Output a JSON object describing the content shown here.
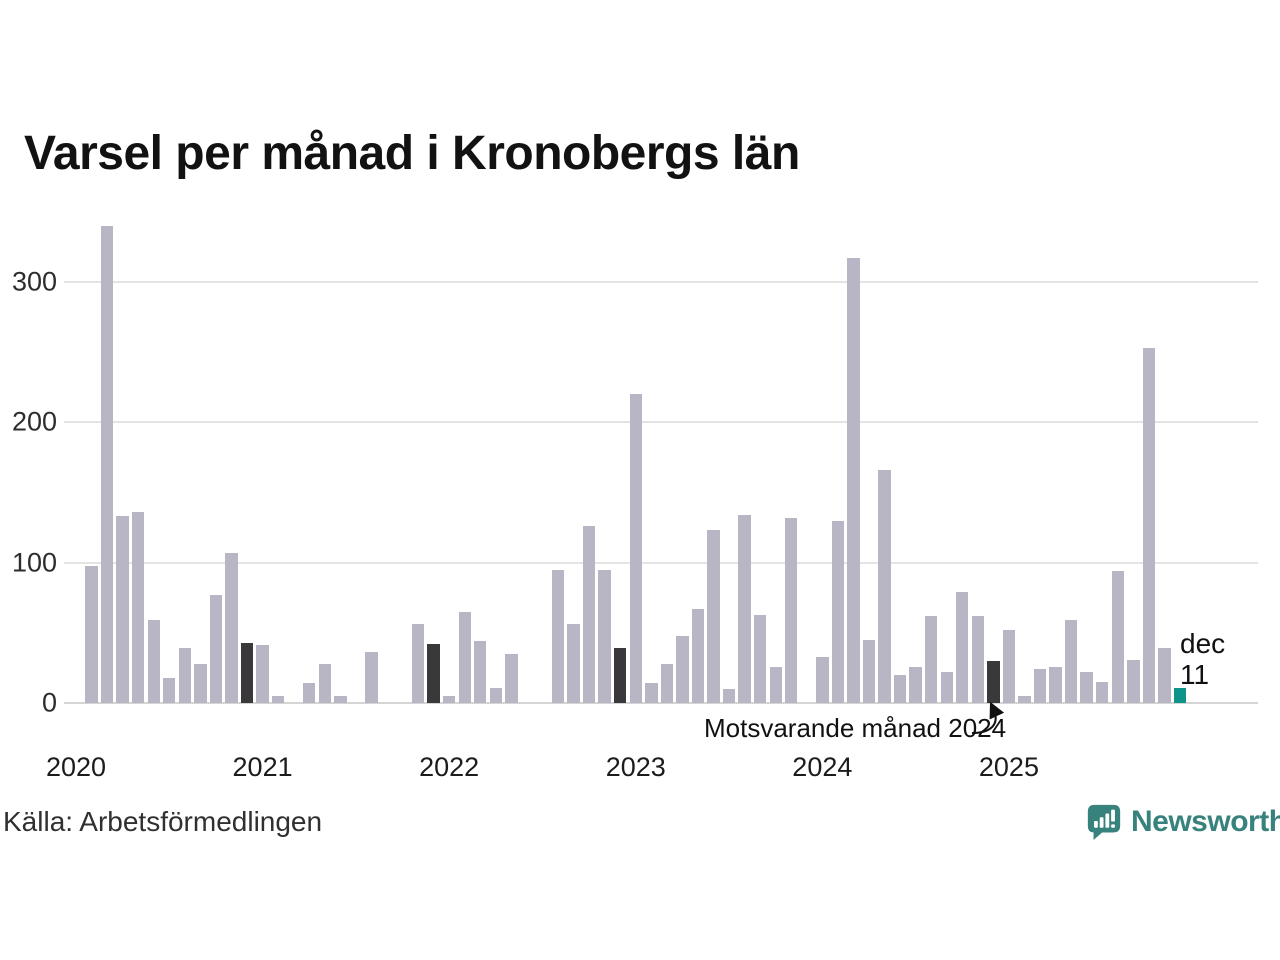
{
  "title": "Varsel per månad i Kronobergs län",
  "source": "Källa: Arbetsförmedlingen",
  "brand": {
    "name": "Newsworthy",
    "color": "#37827c"
  },
  "annotation": {
    "text": "Motsvarande månad 2024"
  },
  "current_label": {
    "line1": "dec",
    "line2": "11"
  },
  "chart_data": {
    "type": "bar",
    "title": "Varsel per månad i Kronobergs län",
    "xlabel": "",
    "ylabel": "",
    "y_ticks": [
      0,
      100,
      200,
      300
    ],
    "y_tick_labels": [
      "0",
      "100",
      "200",
      "300"
    ],
    "ylim": [
      0,
      345
    ],
    "grid": true,
    "legend": "none",
    "x_year_labels": [
      "2020",
      "2021",
      "2022",
      "2023",
      "2024",
      "2025"
    ],
    "colors": {
      "bar": "#b8b5c5",
      "december_compare": "#3a383a",
      "current": "#0e9488",
      "grid": "#e4e4e4",
      "axis": "#d5d5d5"
    },
    "months": [
      "2020-01",
      "2020-02",
      "2020-03",
      "2020-04",
      "2020-05",
      "2020-06",
      "2020-07",
      "2020-08",
      "2020-09",
      "2020-10",
      "2020-11",
      "2020-12",
      "2021-01",
      "2021-02",
      "2021-03",
      "2021-04",
      "2021-05",
      "2021-06",
      "2021-07",
      "2021-08",
      "2021-09",
      "2021-10",
      "2021-11",
      "2021-12",
      "2022-01",
      "2022-02",
      "2022-03",
      "2022-04",
      "2022-05",
      "2022-06",
      "2022-07",
      "2022-08",
      "2022-09",
      "2022-10",
      "2022-11",
      "2022-12",
      "2023-01",
      "2023-02",
      "2023-03",
      "2023-04",
      "2023-05",
      "2023-06",
      "2023-07",
      "2023-08",
      "2023-09",
      "2023-10",
      "2023-11",
      "2023-12",
      "2024-01",
      "2024-02",
      "2024-03",
      "2024-04",
      "2024-05",
      "2024-06",
      "2024-07",
      "2024-08",
      "2024-09",
      "2024-10",
      "2024-11",
      "2024-12",
      "2025-01",
      "2025-02",
      "2025-03",
      "2025-04",
      "2025-05",
      "2025-06",
      "2025-07",
      "2025-08",
      "2025-09",
      "2025-10",
      "2025-11",
      "2025-12"
    ],
    "values": [
      0,
      98,
      340,
      133,
      136,
      59,
      18,
      39,
      28,
      77,
      107,
      43,
      41,
      5,
      0,
      14,
      28,
      5,
      0,
      36,
      0,
      0,
      56,
      42,
      5,
      65,
      44,
      11,
      35,
      0,
      0,
      95,
      56,
      126,
      95,
      39,
      220,
      14,
      28,
      48,
      67,
      123,
      10,
      134,
      63,
      26,
      132,
      0,
      33,
      130,
      317,
      45,
      166,
      20,
      26,
      62,
      22,
      79,
      62,
      30,
      52,
      5,
      24,
      26,
      59,
      22,
      15,
      94,
      31,
      253,
      39,
      11
    ],
    "bar_types": [
      "n",
      "n",
      "n",
      "n",
      "n",
      "n",
      "n",
      "n",
      "n",
      "n",
      "n",
      "dec",
      "n",
      "n",
      "n",
      "n",
      "n",
      "n",
      "n",
      "n",
      "n",
      "n",
      "n",
      "dec",
      "n",
      "n",
      "n",
      "n",
      "n",
      "n",
      "n",
      "n",
      "n",
      "n",
      "n",
      "dec",
      "n",
      "n",
      "n",
      "n",
      "n",
      "n",
      "n",
      "n",
      "n",
      "n",
      "n",
      "dec",
      "n",
      "n",
      "n",
      "n",
      "n",
      "n",
      "n",
      "n",
      "n",
      "n",
      "n",
      "dec",
      "n",
      "n",
      "n",
      "n",
      "n",
      "n",
      "n",
      "n",
      "n",
      "n",
      "n",
      "cur"
    ]
  }
}
